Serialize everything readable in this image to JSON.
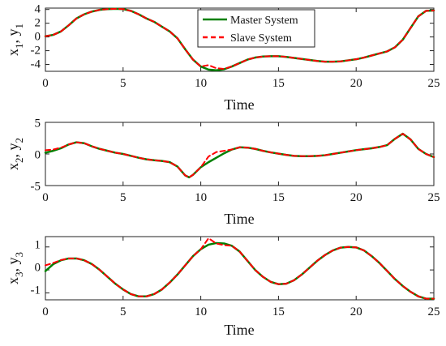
{
  "colors": {
    "master": "#008000",
    "slave": "#ff0000",
    "axis": "#222222",
    "background": "#ffffff"
  },
  "legend": {
    "master_label": "Master System",
    "slave_label": "Slave System"
  },
  "chart_data": [
    {
      "type": "line",
      "title": "",
      "xlabel": "Time",
      "ylabel_main": "x",
      "ylabel_main_sub": "1",
      "ylabel_sep": ", ",
      "ylabel_alt": "y",
      "ylabel_alt_sub": "1",
      "xlim": [
        0,
        25
      ],
      "ylim": [
        -5,
        4.2
      ],
      "xticks": [
        "0",
        "5",
        "10",
        "15",
        "20",
        "25"
      ],
      "yticks": [
        "4",
        "2",
        "0",
        "-2",
        "-4"
      ],
      "legend_position": "top-center",
      "series": [
        {
          "name": "Master System",
          "style": "solid",
          "x": [
            0,
            0.5,
            1,
            1.5,
            2,
            2.5,
            3,
            3.5,
            4,
            4.5,
            5,
            5.5,
            6,
            6.5,
            7,
            7.5,
            8,
            8.5,
            9,
            9.5,
            10,
            10.5,
            11,
            11.5,
            12,
            12.5,
            13,
            13.5,
            14,
            14.5,
            15,
            15.5,
            16,
            16.5,
            17,
            17.5,
            18,
            18.5,
            19,
            19.5,
            20,
            20.5,
            21,
            21.5,
            22,
            22.5,
            23,
            23.5,
            24,
            24.5,
            25
          ],
          "y": [
            0.1,
            0.3,
            0.8,
            1.7,
            2.7,
            3.3,
            3.7,
            3.95,
            4.05,
            4.1,
            4.05,
            3.8,
            3.3,
            2.7,
            2.2,
            1.5,
            0.8,
            -0.2,
            -1.8,
            -3.3,
            -4.3,
            -4.75,
            -4.85,
            -4.7,
            -4.3,
            -3.8,
            -3.3,
            -3.0,
            -2.85,
            -2.8,
            -2.8,
            -2.9,
            -3.05,
            -3.2,
            -3.35,
            -3.5,
            -3.6,
            -3.6,
            -3.55,
            -3.4,
            -3.25,
            -3.0,
            -2.7,
            -2.4,
            -2.1,
            -1.5,
            -0.4,
            1.3,
            3.0,
            3.8,
            3.85
          ]
        },
        {
          "name": "Slave System",
          "style": "dashed",
          "x": [
            0,
            0.5,
            1,
            1.5,
            2,
            2.5,
            3,
            3.5,
            4,
            4.5,
            5,
            5.5,
            6,
            6.5,
            7,
            7.5,
            8,
            8.5,
            9,
            9.5,
            10,
            10.5,
            11,
            11.5,
            12,
            12.5,
            13,
            13.5,
            14,
            14.5,
            15,
            15.5,
            16,
            16.5,
            17,
            17.5,
            18,
            18.5,
            19,
            19.5,
            20,
            20.5,
            21,
            21.5,
            22,
            22.5,
            23,
            23.5,
            24,
            24.5,
            25
          ],
          "y": [
            0.1,
            0.3,
            0.8,
            1.7,
            2.7,
            3.3,
            3.7,
            3.95,
            4.05,
            4.1,
            4.05,
            3.8,
            3.3,
            2.7,
            2.2,
            1.5,
            0.8,
            -0.2,
            -1.8,
            -3.3,
            -4.3,
            -4.1,
            -4.55,
            -4.65,
            -4.3,
            -3.8,
            -3.3,
            -3.0,
            -2.85,
            -2.8,
            -2.8,
            -2.9,
            -3.05,
            -3.2,
            -3.35,
            -3.5,
            -3.6,
            -3.6,
            -3.55,
            -3.4,
            -3.25,
            -3.0,
            -2.7,
            -2.4,
            -2.1,
            -1.5,
            -0.4,
            1.3,
            3.0,
            3.8,
            3.85
          ]
        }
      ]
    },
    {
      "type": "line",
      "title": "",
      "xlabel": "Time",
      "ylabel_main": "x",
      "ylabel_main_sub": "2",
      "ylabel_sep": ", ",
      "ylabel_alt": "y",
      "ylabel_alt_sub": "2",
      "xlim": [
        0,
        25
      ],
      "ylim": [
        -5,
        5
      ],
      "xticks": [
        "0",
        "5",
        "10",
        "15",
        "20",
        "25"
      ],
      "yticks": [
        "5",
        "0",
        "-5"
      ],
      "series": [
        {
          "name": "Master System",
          "style": "solid",
          "x": [
            0,
            0.5,
            1,
            1.5,
            2,
            2.5,
            3,
            3.5,
            4,
            4.5,
            5,
            5.5,
            6,
            6.5,
            7,
            7.5,
            8,
            8.5,
            9,
            9.25,
            9.5,
            10,
            10.5,
            11,
            11.5,
            12,
            12.5,
            13,
            13.5,
            14,
            14.5,
            15,
            15.5,
            16,
            16.5,
            17,
            17.5,
            18,
            18.5,
            19,
            19.5,
            20,
            20.5,
            21,
            21.5,
            22,
            22.5,
            23,
            23.5,
            24,
            24.5,
            25
          ],
          "y": [
            0.2,
            0.5,
            0.9,
            1.5,
            1.85,
            1.7,
            1.2,
            0.8,
            0.5,
            0.2,
            0,
            -0.3,
            -0.6,
            -0.85,
            -1.0,
            -1.1,
            -1.3,
            -2.0,
            -3.4,
            -3.7,
            -3.3,
            -2.1,
            -1.3,
            -0.6,
            0.1,
            0.7,
            1.05,
            1.0,
            0.8,
            0.5,
            0.25,
            0.05,
            -0.15,
            -0.3,
            -0.35,
            -0.35,
            -0.3,
            -0.2,
            0,
            0.2,
            0.4,
            0.6,
            0.75,
            0.9,
            1.1,
            1.4,
            2.4,
            3.2,
            2.3,
            0.8,
            0,
            -0.5
          ]
        },
        {
          "name": "Slave System",
          "style": "dashed",
          "x": [
            0,
            0.5,
            1,
            1.5,
            2,
            2.5,
            3,
            3.5,
            4,
            4.5,
            5,
            5.5,
            6,
            6.5,
            7,
            7.5,
            8,
            8.5,
            9,
            9.25,
            9.5,
            10,
            10.5,
            11,
            11.5,
            12,
            12.5,
            13,
            13.5,
            14,
            14.5,
            15,
            15.5,
            16,
            16.5,
            17,
            17.5,
            18,
            18.5,
            19,
            19.5,
            20,
            20.5,
            21,
            21.5,
            22,
            22.5,
            23,
            23.5,
            24,
            24.5,
            25
          ],
          "y": [
            0.6,
            0.7,
            1.0,
            1.5,
            1.85,
            1.7,
            1.2,
            0.8,
            0.5,
            0.2,
            0,
            -0.3,
            -0.6,
            -0.85,
            -1.0,
            -1.1,
            -1.3,
            -2.0,
            -3.4,
            -3.7,
            -3.3,
            -2.1,
            -0.4,
            0.3,
            0.5,
            0.7,
            1.05,
            1.0,
            0.8,
            0.5,
            0.25,
            0.05,
            -0.15,
            -0.3,
            -0.35,
            -0.35,
            -0.3,
            -0.2,
            0,
            0.2,
            0.4,
            0.6,
            0.75,
            0.9,
            1.1,
            1.4,
            2.4,
            3.2,
            2.3,
            0.8,
            0,
            -0.5
          ]
        }
      ]
    },
    {
      "type": "line",
      "title": "",
      "xlabel": "Time",
      "ylabel_main": "x",
      "ylabel_main_sub": "3",
      "ylabel_sep": ", ",
      "ylabel_alt": "y",
      "ylabel_alt_sub": "3",
      "xlim": [
        0,
        25
      ],
      "ylim": [
        -1.3,
        1.45
      ],
      "xticks": [
        "0",
        "5",
        "10",
        "15",
        "20",
        "25"
      ],
      "yticks": [
        "1",
        "0",
        "-1"
      ],
      "series": [
        {
          "name": "Master System",
          "style": "solid",
          "x": [
            0,
            0.5,
            1,
            1.5,
            2,
            2.5,
            3,
            3.5,
            4,
            4.5,
            5,
            5.5,
            6,
            6.5,
            7,
            7.5,
            8,
            8.5,
            9,
            9.5,
            10,
            10.5,
            11,
            11.5,
            12,
            12.5,
            13,
            13.5,
            14,
            14.5,
            15,
            15.5,
            16,
            16.5,
            17,
            17.5,
            18,
            18.5,
            19,
            19.5,
            20,
            20.5,
            21,
            21.5,
            22,
            22.5,
            23,
            23.5,
            24,
            24.5,
            25
          ],
          "y": [
            -0.05,
            0.25,
            0.42,
            0.5,
            0.5,
            0.42,
            0.25,
            0,
            -0.3,
            -0.6,
            -0.85,
            -1.05,
            -1.15,
            -1.15,
            -1.05,
            -0.85,
            -0.55,
            -0.2,
            0.2,
            0.6,
            0.9,
            1.1,
            1.17,
            1.15,
            1.05,
            0.8,
            0.4,
            0,
            -0.3,
            -0.52,
            -0.62,
            -0.6,
            -0.45,
            -0.2,
            0.1,
            0.4,
            0.65,
            0.85,
            0.97,
            1.0,
            0.98,
            0.85,
            0.6,
            0.3,
            -0.05,
            -0.4,
            -0.7,
            -0.95,
            -1.15,
            -1.25,
            -1.25
          ]
        },
        {
          "name": "Slave System",
          "style": "dashed",
          "x": [
            0,
            0.5,
            1,
            1.5,
            2,
            2.5,
            3,
            3.5,
            4,
            4.5,
            5,
            5.5,
            6,
            6.5,
            7,
            7.5,
            8,
            8.5,
            9,
            9.5,
            10,
            10.5,
            11,
            11.5,
            12,
            12.5,
            13,
            13.5,
            14,
            14.5,
            15,
            15.5,
            16,
            16.5,
            17,
            17.5,
            18,
            18.5,
            19,
            19.5,
            20,
            20.5,
            21,
            21.5,
            22,
            22.5,
            23,
            23.5,
            24,
            24.5,
            25
          ],
          "y": [
            0.2,
            0.3,
            0.43,
            0.5,
            0.5,
            0.42,
            0.25,
            0,
            -0.3,
            -0.6,
            -0.85,
            -1.05,
            -1.15,
            -1.15,
            -1.05,
            -0.85,
            -0.55,
            -0.2,
            0.2,
            0.6,
            0.9,
            1.38,
            1.15,
            1.08,
            1.05,
            0.8,
            0.4,
            0,
            -0.3,
            -0.52,
            -0.62,
            -0.6,
            -0.45,
            -0.2,
            0.1,
            0.4,
            0.65,
            0.85,
            0.97,
            1.0,
            0.98,
            0.85,
            0.6,
            0.3,
            -0.05,
            -0.4,
            -0.7,
            -0.95,
            -1.15,
            -1.25,
            -1.25
          ]
        }
      ]
    }
  ]
}
